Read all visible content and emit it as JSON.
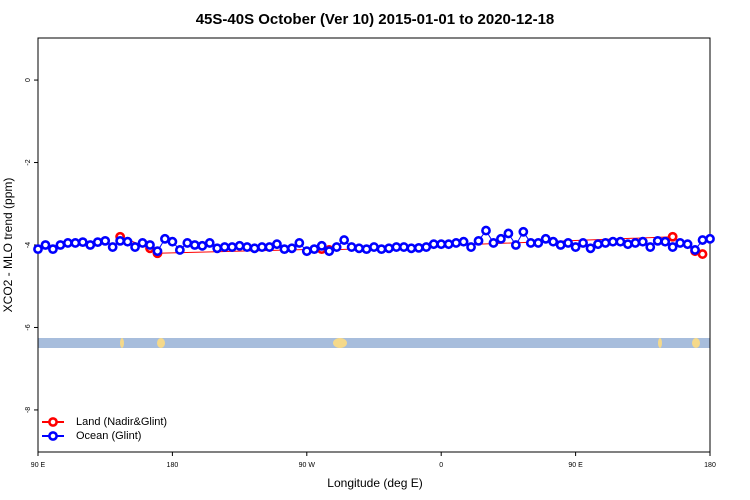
{
  "chart_data": {
    "type": "line",
    "title": "45S-40S October (Ver 10)   2015-01-01 to 2020-12-18",
    "x_label": "Longitude (deg E)",
    "y_label": "XCO2 - MLO trend (ppm)",
    "xlim": [
      90,
      540
    ],
    "xticks": [
      {
        "value": 90,
        "label": "90 E"
      },
      180,
      {
        "value": 270,
        "label": "90 W"
      },
      {
        "value": 360,
        "label": "0"
      },
      {
        "value": 450,
        "label": "90 E"
      },
      {
        "value": 540,
        "label": "180"
      }
    ],
    "ylim": [
      -9.02,
      1.02
    ],
    "yticks": [
      0,
      -2,
      -4,
      -6,
      -8
    ],
    "legend": "bottomleft",
    "series": [
      {
        "name": "Land (Nadir&Glint)",
        "color": "#ff0000",
        "x": [
          145,
          165,
          170,
          280,
          285,
          515,
          530,
          535
        ],
        "values": [
          -3.8,
          -4.08,
          -4.2,
          -4.1,
          -4.12,
          -3.8,
          -4.15,
          -4.22
        ]
      },
      {
        "name": "Ocean (Glint)",
        "color": "#0000ff",
        "x": [
          90,
          95,
          100,
          105,
          110,
          115,
          120,
          125,
          130,
          135,
          140,
          145,
          150,
          155,
          160,
          165,
          170,
          175,
          180,
          185,
          190,
          195,
          200,
          205,
          210,
          215,
          220,
          225,
          230,
          235,
          240,
          245,
          250,
          255,
          260,
          265,
          270,
          275,
          280,
          285,
          290,
          295,
          300,
          305,
          310,
          315,
          320,
          325,
          330,
          335,
          340,
          345,
          350,
          355,
          360,
          365,
          370,
          375,
          380,
          385,
          390,
          395,
          400,
          405,
          410,
          415,
          420,
          425,
          430,
          435,
          440,
          445,
          450,
          455,
          460,
          465,
          470,
          475,
          480,
          485,
          490,
          495,
          500,
          505,
          510,
          515,
          520,
          525,
          530,
          535,
          540
        ],
        "values": [
          -4.1,
          -4.0,
          -4.1,
          -4.0,
          -3.95,
          -3.95,
          -3.93,
          -4.0,
          -3.93,
          -3.9,
          -4.05,
          -3.9,
          -3.92,
          -4.05,
          -3.95,
          -4.0,
          -4.15,
          -3.85,
          -3.92,
          -4.12,
          -3.95,
          -4.0,
          -4.02,
          -3.95,
          -4.08,
          -4.05,
          -4.05,
          -4.02,
          -4.05,
          -4.08,
          -4.05,
          -4.05,
          -3.98,
          -4.1,
          -4.08,
          -3.95,
          -4.15,
          -4.1,
          -4.02,
          -4.15,
          -4.05,
          -3.88,
          -4.05,
          -4.08,
          -4.1,
          -4.05,
          -4.1,
          -4.08,
          -4.05,
          -4.05,
          -4.08,
          -4.07,
          -4.05,
          -3.98,
          -3.98,
          -3.98,
          -3.95,
          -3.92,
          -4.05,
          -3.9,
          -3.65,
          -3.95,
          -3.85,
          -3.72,
          -4.0,
          -3.68,
          -3.95,
          -3.95,
          -3.85,
          -3.92,
          -4.0,
          -3.95,
          -4.05,
          -3.95,
          -4.08,
          -3.98,
          -3.95,
          -3.92,
          -3.92,
          -3.98,
          -3.95,
          -3.92,
          -4.05,
          -3.9,
          -3.92,
          -4.05,
          -3.95,
          -3.98,
          -4.12,
          -3.88,
          -3.85
        ]
      }
    ]
  }
}
